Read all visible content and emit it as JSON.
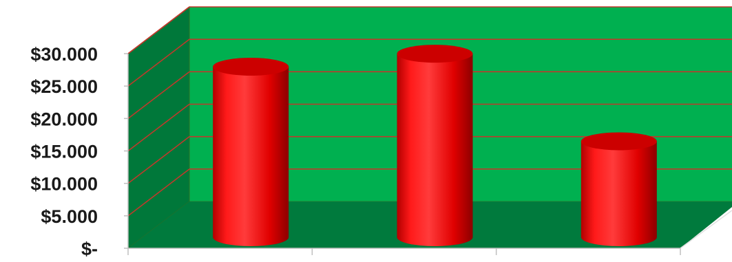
{
  "chart_data": {
    "type": "bar",
    "variant": "3d-cylinder",
    "categories": [
      "",
      "",
      ""
    ],
    "series": [
      {
        "values": [
          26500,
          28500,
          15000
        ]
      }
    ],
    "title": "",
    "xlabel": "",
    "ylabel": "",
    "ylim": [
      0,
      30000
    ],
    "y_ticks": [
      0,
      5000,
      10000,
      15000,
      20000,
      25000,
      30000
    ],
    "y_tick_labels": [
      "$-",
      "$5.000",
      "$10.000",
      "$15.000",
      "$20.000",
      "$25.000",
      "$30.000"
    ],
    "grid": true,
    "legend": "none",
    "colors": {
      "bar": "#ff0000",
      "bar_top": "#cc0000",
      "back_wall": "#00b050",
      "side_wall": "#00783a",
      "floor": "#007a3d",
      "gridline": "#c0392b",
      "axis": "#bfbfbf"
    }
  }
}
